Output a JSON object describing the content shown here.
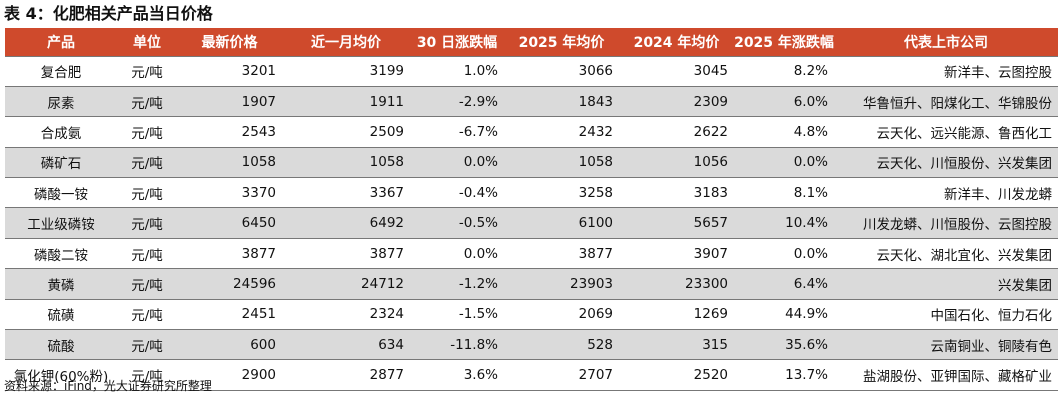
{
  "title": "表 4：化肥相关产品当日价格",
  "columns": [
    "产品",
    "单位",
    "最新价格",
    "近一月均价",
    "30 日涨跌幅",
    "2025 年均价",
    "2024 年均价",
    "2025 年涨跌幅",
    "代表上市公司"
  ],
  "rows": [
    [
      "复合肥",
      "元/吨",
      "3201",
      "3199",
      "1.0%",
      "3066",
      "3045",
      "8.2%",
      "新洋丰、云图控股"
    ],
    [
      "尿素",
      "元/吨",
      "1907",
      "1911",
      "-2.9%",
      "1843",
      "2309",
      "6.0%",
      "华鲁恒升、阳煤化工、华锦股份"
    ],
    [
      "合成氨",
      "元/吨",
      "2543",
      "2509",
      "-6.7%",
      "2432",
      "2622",
      "4.8%",
      "云天化、远兴能源、鲁西化工"
    ],
    [
      "磷矿石",
      "元/吨",
      "1058",
      "1058",
      "0.0%",
      "1058",
      "1056",
      "0.0%",
      "云天化、川恒股份、兴发集团"
    ],
    [
      "磷酸一铵",
      "元/吨",
      "3370",
      "3367",
      "-0.4%",
      "3258",
      "3183",
      "8.1%",
      "新洋丰、川发龙蟒"
    ],
    [
      "工业级磷铵",
      "元/吨",
      "6450",
      "6492",
      "-0.5%",
      "6100",
      "5657",
      "10.4%",
      "川发龙蟒、川恒股份、云图控股"
    ],
    [
      "磷酸二铵",
      "元/吨",
      "3877",
      "3877",
      "0.0%",
      "3877",
      "3907",
      "0.0%",
      "云天化、湖北宜化、兴发集团"
    ],
    [
      "黄磷",
      "元/吨",
      "24596",
      "24712",
      "-1.2%",
      "23903",
      "23300",
      "6.4%",
      "兴发集团"
    ],
    [
      "硫磺",
      "元/吨",
      "2451",
      "2324",
      "-1.5%",
      "2069",
      "1269",
      "44.9%",
      "中国石化、恒力石化"
    ],
    [
      "硫酸",
      "元/吨",
      "600",
      "634",
      "-11.8%",
      "528",
      "315",
      "35.6%",
      "云南铜业、铜陵有色"
    ],
    [
      "氯化钾(60%粉)",
      "元/吨",
      "2900",
      "2877",
      "3.6%",
      "2707",
      "2520",
      "13.7%",
      "盐湖股份、亚钾国际、藏格矿业"
    ]
  ],
  "source": "资料来源：iFind，光大证券研究所整理",
  "colors": {
    "header_bg": "#cf4a2c",
    "stripe": "#dadada"
  }
}
